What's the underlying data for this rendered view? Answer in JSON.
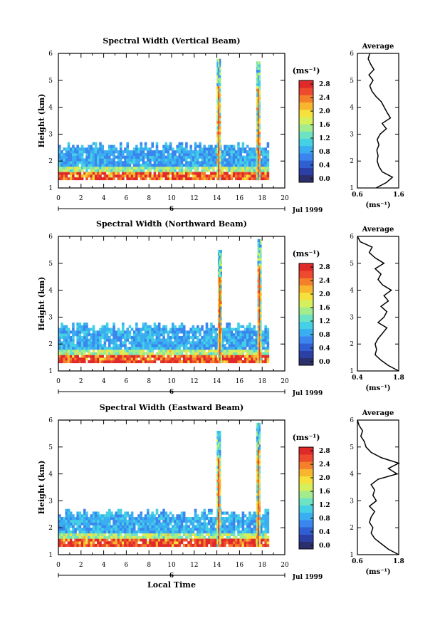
{
  "common": {
    "ylabel": "Height (km)",
    "xlabel": "Local Time",
    "date_day": "6",
    "date_label": "Jul 1999",
    "colorbar_unit": "(ms⁻¹)",
    "avg_title": "Average",
    "avg_unit": "(ms⁻¹)"
  },
  "chart_data": [
    {
      "type": "heatmap",
      "title": "Spectral Width (Vertical Beam)",
      "xlabel": "",
      "ylabel": "Height (km)",
      "xlim": [
        0,
        20
      ],
      "ylim": [
        1,
        6
      ],
      "xticks": [
        "0",
        "2",
        "4",
        "6",
        "8",
        "10",
        "12",
        "14",
        "16",
        "18",
        "20"
      ],
      "yticks": [
        "1",
        "2",
        "3",
        "4",
        "5",
        "6"
      ],
      "colorbar": {
        "min": 0.0,
        "max": 2.8,
        "ticks": [
          "0.0",
          "0.4",
          "0.8",
          "1.2",
          "1.6",
          "2.0",
          "2.4",
          "2.8"
        ]
      },
      "avg": {
        "title": "Average",
        "xlim": [
          0.6,
          1.6
        ],
        "xticks": [
          "0.6",
          "1.6"
        ],
        "xlabel": "(ms⁻¹)",
        "yticks": [
          "1",
          "2",
          "3",
          "4",
          "5",
          "6"
        ],
        "height": [
          1.0,
          1.2,
          1.4,
          1.6,
          1.8,
          2.0,
          2.2,
          2.4,
          2.6,
          2.8,
          3.0,
          3.2,
          3.4,
          3.6,
          3.8,
          4.0,
          4.2,
          4.4,
          4.6,
          4.8,
          5.0,
          5.2,
          5.4,
          5.6,
          5.8,
          6.0
        ],
        "value": [
          1.05,
          1.3,
          1.45,
          1.2,
          1.12,
          1.08,
          1.1,
          1.07,
          1.12,
          1.08,
          1.15,
          1.3,
          1.2,
          1.4,
          1.32,
          1.25,
          1.18,
          1.05,
          0.95,
          0.9,
          0.98,
          0.88,
          1.0,
          0.92,
          0.86,
          0.9
        ]
      },
      "data": {
        "bottom": 1.3,
        "top": 2.5,
        "tmin": 0.0,
        "tmax": 18.4,
        "base": 0.55,
        "spikes": [
          [
            14.1,
            5.7
          ],
          [
            17.6,
            5.6
          ]
        ]
      }
    },
    {
      "type": "heatmap",
      "title": "Spectral Width (Northward Beam)",
      "xlabel": "",
      "ylabel": "Height (km)",
      "xlim": [
        0,
        20
      ],
      "ylim": [
        1,
        6
      ],
      "xticks": [
        "0",
        "2",
        "4",
        "6",
        "8",
        "10",
        "12",
        "14",
        "16",
        "18",
        "20"
      ],
      "yticks": [
        "1",
        "2",
        "3",
        "4",
        "5",
        "6"
      ],
      "colorbar": {
        "min": 0.0,
        "max": 2.8,
        "ticks": [
          "0.0",
          "0.4",
          "0.8",
          "1.2",
          "1.6",
          "2.0",
          "2.4",
          "2.8"
        ]
      },
      "avg": {
        "title": "Average",
        "xlim": [
          0.4,
          1.8
        ],
        "xticks": [
          "0.4",
          "1.8"
        ],
        "xlabel": "(ms⁻¹)",
        "yticks": [
          "1",
          "2",
          "3",
          "4",
          "5",
          "6"
        ],
        "height": [
          1.0,
          1.2,
          1.4,
          1.6,
          1.8,
          2.0,
          2.2,
          2.4,
          2.6,
          2.8,
          3.0,
          3.2,
          3.4,
          3.6,
          3.8,
          4.0,
          4.2,
          4.4,
          4.6,
          4.8,
          5.0,
          5.2,
          5.4,
          5.6,
          5.8,
          6.0
        ],
        "value": [
          1.8,
          1.45,
          1.2,
          1.0,
          1.05,
          1.0,
          1.1,
          1.25,
          1.4,
          1.1,
          1.3,
          1.4,
          1.2,
          1.45,
          1.3,
          1.55,
          1.25,
          1.1,
          1.2,
          1.0,
          1.3,
          1.0,
          0.8,
          0.9,
          0.5,
          0.4
        ]
      },
      "data": {
        "bottom": 1.3,
        "top": 2.6,
        "tmin": 0.0,
        "tmax": 18.4,
        "base": 0.6,
        "spikes": [
          [
            14.2,
            5.4
          ],
          [
            17.7,
            5.8
          ]
        ]
      }
    },
    {
      "type": "heatmap",
      "title": "Spectral Width (Eastward Beam)",
      "xlabel": "Local Time",
      "ylabel": "Height (km)",
      "xlim": [
        0,
        20
      ],
      "ylim": [
        1,
        6
      ],
      "xticks": [
        "0",
        "2",
        "4",
        "6",
        "8",
        "10",
        "12",
        "14",
        "16",
        "18",
        "20"
      ],
      "yticks": [
        "1",
        "2",
        "3",
        "4",
        "5",
        "6"
      ],
      "colorbar": {
        "min": 0.0,
        "max": 2.8,
        "ticks": [
          "0.0",
          "0.4",
          "0.8",
          "1.2",
          "1.6",
          "2.0",
          "2.4",
          "2.8"
        ]
      },
      "avg": {
        "title": "Average",
        "xlim": [
          0.6,
          1.8
        ],
        "xticks": [
          "0.6",
          "1.8"
        ],
        "xlabel": "(ms⁻¹)",
        "yticks": [
          "1",
          "2",
          "3",
          "4",
          "5",
          "6"
        ],
        "height": [
          1.0,
          1.2,
          1.4,
          1.6,
          1.8,
          2.0,
          2.2,
          2.4,
          2.6,
          2.8,
          3.0,
          3.2,
          3.4,
          3.6,
          3.8,
          4.0,
          4.2,
          4.4,
          4.6,
          4.8,
          5.0,
          5.2,
          5.4,
          5.6,
          5.8,
          6.0
        ],
        "value": [
          1.8,
          1.5,
          1.3,
          1.1,
          1.0,
          1.05,
          0.95,
          1.0,
          1.1,
          0.95,
          1.15,
          1.05,
          1.1,
          1.0,
          1.2,
          1.75,
          1.5,
          1.8,
          1.3,
          1.0,
          0.85,
          0.8,
          0.7,
          0.75,
          0.65,
          0.6
        ]
      },
      "data": {
        "bottom": 1.3,
        "top": 2.5,
        "tmin": 0.0,
        "tmax": 18.4,
        "base": 0.6,
        "spikes": [
          [
            14.1,
            5.5
          ],
          [
            17.6,
            5.8
          ]
        ]
      }
    }
  ]
}
